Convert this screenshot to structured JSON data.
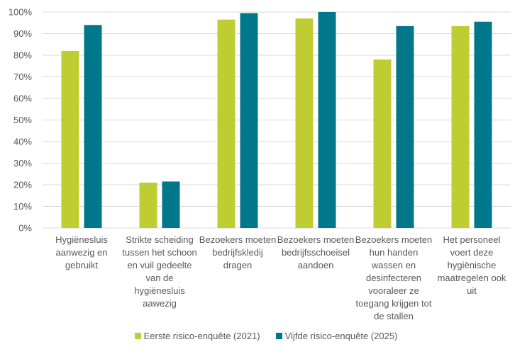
{
  "chart_data": {
    "type": "bar",
    "title": "",
    "xlabel": "",
    "ylabel": "",
    "ylim": [
      0,
      100
    ],
    "yticks": [
      "0%",
      "10%",
      "20%",
      "30%",
      "40%",
      "50%",
      "60%",
      "70%",
      "80%",
      "90%",
      "100%"
    ],
    "grid": true,
    "legend_position": "bottom",
    "categories": [
      "Hygiënesluis aanwezig en gebruikt",
      "Strikte scheiding tussen het schoon en vuil gedeelte van de hygiënesluis aawezig",
      "Bezoekers moeten bedrijfskledij dragen",
      "Bezoekers moeten bedrijfsschoeisel aandoen",
      "Bezoekers moeten hun handen wassen en desinfecteren vooraleer ze toegang krijgen tot de stallen",
      "Het personeel voert deze hygiënische maatregelen ook uit"
    ],
    "series": [
      {
        "name": "Eerste risico-enquête (2021)",
        "color": "#BFCD32",
        "values": [
          82,
          21,
          96.5,
          97,
          78,
          93.5
        ]
      },
      {
        "name": "Vijfde risico-enquête (2025)",
        "color": "#00778A",
        "values": [
          94,
          21.5,
          99.5,
          100,
          93.5,
          95.5
        ]
      }
    ]
  }
}
